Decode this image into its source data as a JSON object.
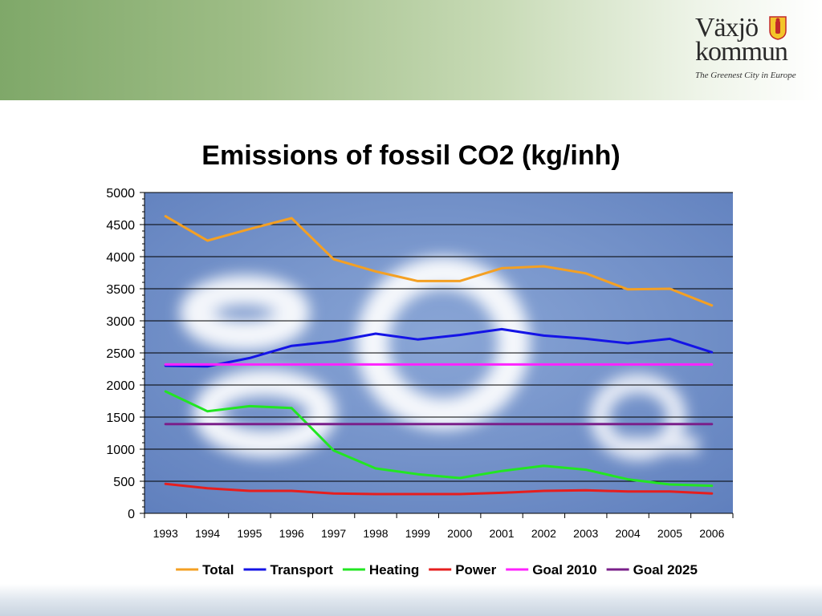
{
  "brand": {
    "name_line1": "Växjö",
    "name_line2": "kommun",
    "tagline": "The Greenest City in Europe"
  },
  "chart_data": {
    "type": "line",
    "title": "Emissions of fossil CO2 (kg/inh)",
    "xlabel": "",
    "ylabel": "",
    "categories": [
      "1993",
      "1994",
      "1995",
      "1996",
      "1997",
      "1998",
      "1999",
      "2000",
      "2001",
      "2002",
      "2003",
      "2004",
      "2005",
      "2006"
    ],
    "ylim": [
      0,
      5000
    ],
    "yticks": [
      0,
      500,
      1000,
      1500,
      2000,
      2500,
      3000,
      3500,
      4000,
      4500,
      5000
    ],
    "grid": true,
    "legend_position": "bottom",
    "series": [
      {
        "name": "Total",
        "color": "#f4a023",
        "values": [
          4630,
          4250,
          4430,
          4600,
          3960,
          3770,
          3620,
          3620,
          3820,
          3850,
          3740,
          3490,
          3500,
          3240
        ]
      },
      {
        "name": "Transport",
        "color": "#1414e6",
        "values": [
          2300,
          2290,
          2420,
          2610,
          2680,
          2800,
          2710,
          2780,
          2870,
          2770,
          2720,
          2650,
          2720,
          2510
        ]
      },
      {
        "name": "Heating",
        "color": "#22e622",
        "values": [
          1900,
          1590,
          1670,
          1640,
          980,
          700,
          610,
          550,
          660,
          740,
          680,
          530,
          450,
          430
        ]
      },
      {
        "name": "Power",
        "color": "#e61e1e",
        "values": [
          460,
          390,
          350,
          350,
          310,
          300,
          300,
          300,
          320,
          350,
          360,
          340,
          340,
          310
        ]
      },
      {
        "name": "Goal 2010",
        "color": "#ff22ff",
        "values": [
          2320,
          2320,
          2320,
          2320,
          2320,
          2320,
          2320,
          2320,
          2320,
          2320,
          2320,
          2320,
          2320,
          2320
        ]
      },
      {
        "name": "Goal 2025",
        "color": "#7a1f8a",
        "values": [
          1390,
          1390,
          1390,
          1390,
          1390,
          1390,
          1390,
          1390,
          1390,
          1390,
          1390,
          1390,
          1390,
          1390
        ]
      }
    ]
  }
}
